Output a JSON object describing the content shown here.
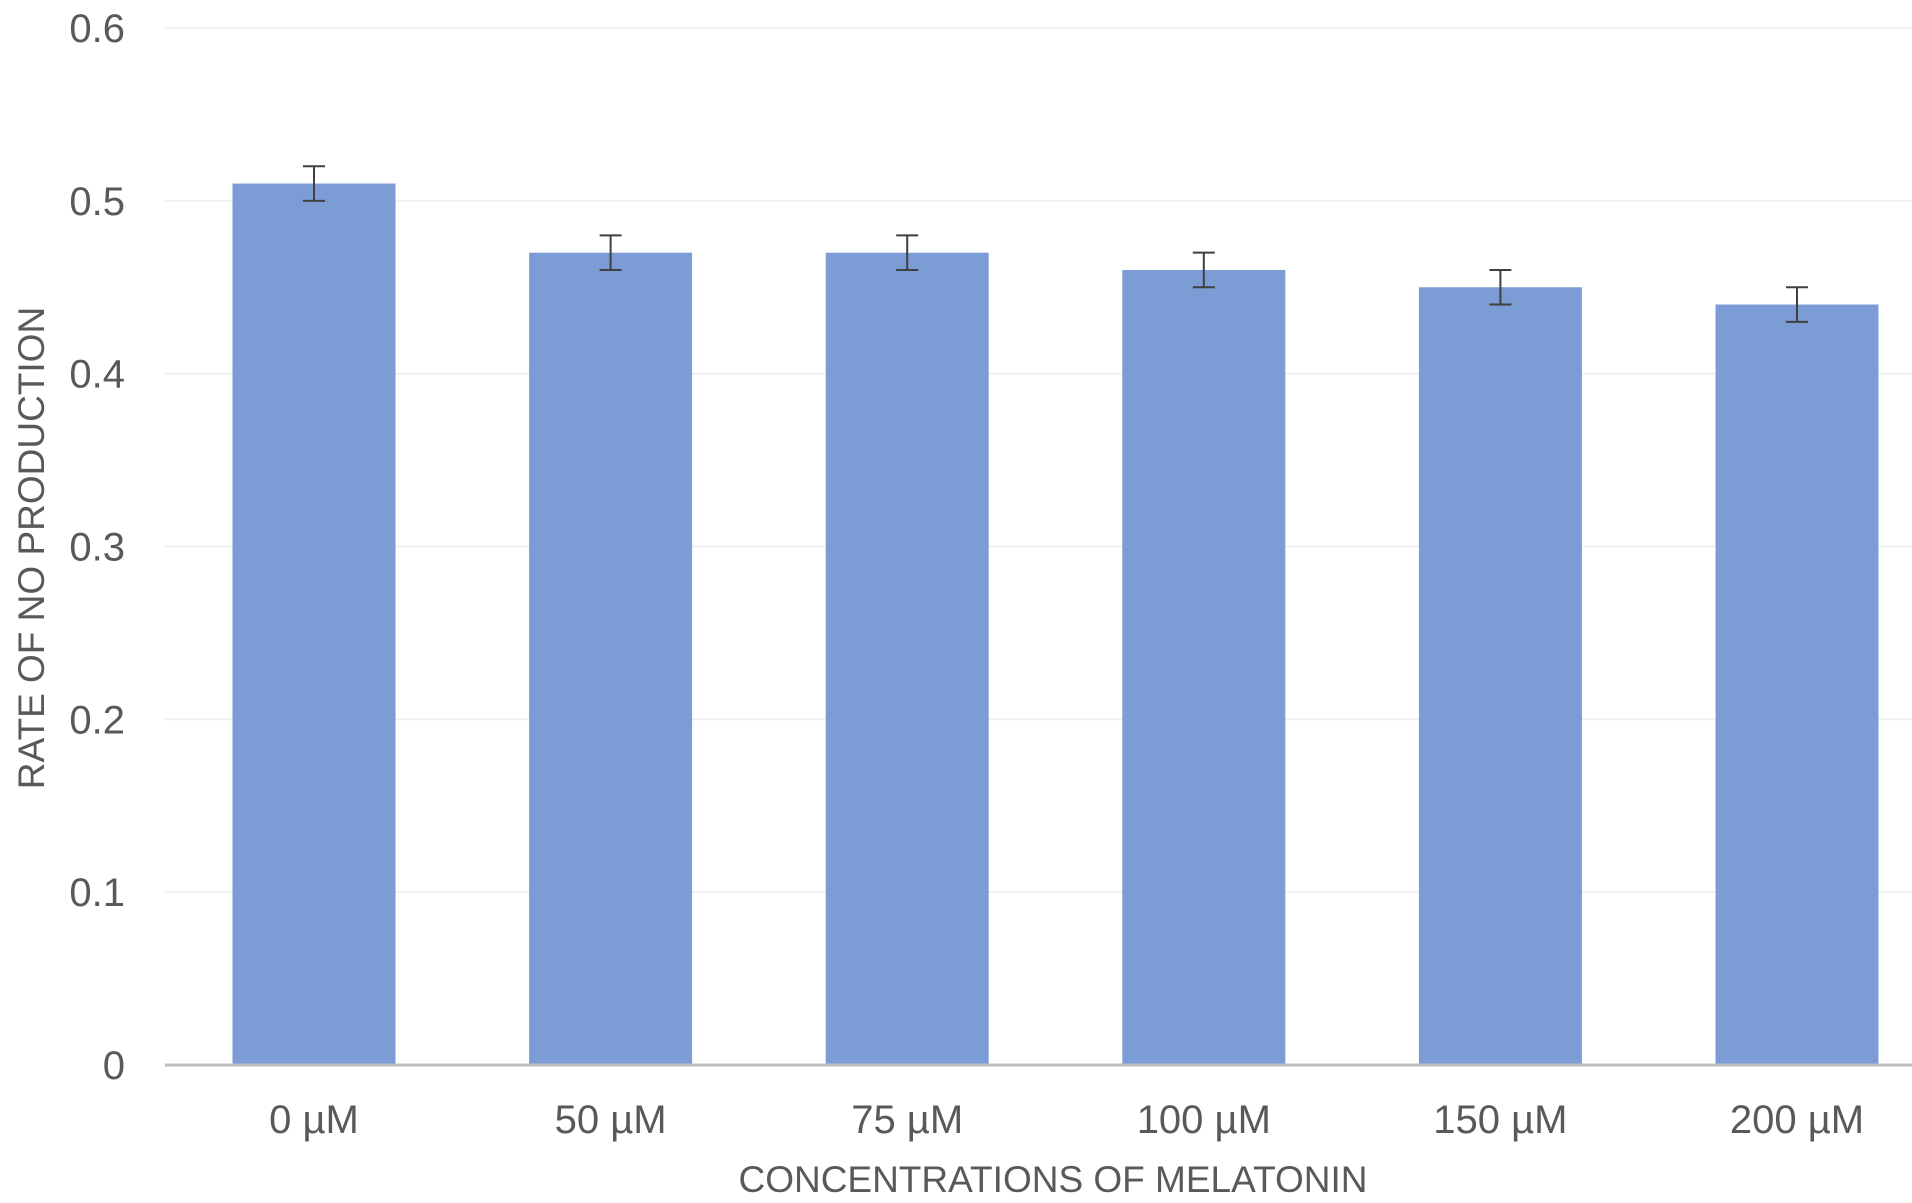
{
  "chart_data": {
    "type": "bar",
    "title": "",
    "xlabel": "CONCENTRATIONS OF MELATONIN",
    "ylabel": "RATE OF NO PRODUCTION",
    "categories": [
      "0 µM",
      "50 µM",
      "75 µM",
      "100 µM",
      "150 µM",
      "200 µM"
    ],
    "series": [
      {
        "values": [
          0.51,
          0.47,
          0.47,
          0.46,
          0.45,
          0.44
        ],
        "error": [
          0.01,
          0.01,
          0.01,
          0.01,
          0.01,
          0.01
        ]
      }
    ],
    "ylim": [
      0,
      0.6
    ],
    "yticks": [
      "0",
      "0.1",
      "0.2",
      "0.3",
      "0.4",
      "0.5",
      "0.6"
    ],
    "grid": true,
    "legend": "none",
    "colors": {
      "bar": "#7b9cd4",
      "grid": "#eeeeee",
      "axis": "#bfbfbf",
      "error_bar": "#404040",
      "text": "#595959"
    }
  }
}
